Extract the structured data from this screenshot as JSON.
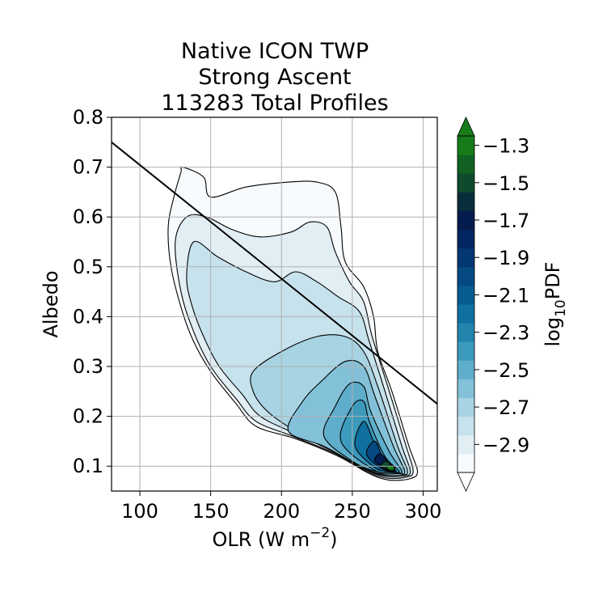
{
  "chart_data": {
    "type": "contourf",
    "title": [
      "Native ICON TWP",
      "Strong Ascent",
      "113283 Total Profiles"
    ],
    "xlabel": "OLR (W m",
    "xlabel_sup": "−2",
    "xlabel_end": ")",
    "ylabel": "Albedo",
    "xlim": [
      80,
      310
    ],
    "ylim": [
      0.05,
      0.8
    ],
    "xticks": [
      100,
      150,
      200,
      250,
      300
    ],
    "yticks": [
      0.1,
      0.2,
      0.3,
      0.4,
      0.5,
      0.6,
      0.7,
      0.8
    ],
    "grid": true,
    "reference_line": {
      "x": [
        80,
        310
      ],
      "y": [
        0.75,
        0.225
      ]
    },
    "peak": {
      "olr": 280,
      "albedo": 0.09,
      "log10pdf": -1.3
    },
    "contours": [
      {
        "level": -3.0,
        "points": [
          [
            130,
            0.7
          ],
          [
            145,
            0.68
          ],
          [
            150,
            0.64
          ],
          [
            175,
            0.66
          ],
          [
            205,
            0.67
          ],
          [
            225,
            0.67
          ],
          [
            238,
            0.65
          ],
          [
            242,
            0.58
          ],
          [
            245,
            0.51
          ],
          [
            258,
            0.46
          ],
          [
            265,
            0.4
          ],
          [
            268,
            0.33
          ],
          [
            278,
            0.25
          ],
          [
            290,
            0.14
          ],
          [
            296,
            0.09
          ],
          [
            291,
            0.075
          ],
          [
            276,
            0.072
          ],
          [
            262,
            0.085
          ],
          [
            240,
            0.12
          ],
          [
            210,
            0.155
          ],
          [
            182,
            0.18
          ],
          [
            168,
            0.225
          ],
          [
            150,
            0.29
          ],
          [
            138,
            0.35
          ],
          [
            130,
            0.41
          ],
          [
            122,
            0.5
          ],
          [
            120,
            0.58
          ],
          [
            124,
            0.64
          ],
          [
            129,
            0.69
          ]
        ]
      },
      {
        "level": -2.9,
        "points": [
          [
            125,
            0.55
          ],
          [
            133,
            0.6
          ],
          [
            147,
            0.6
          ],
          [
            165,
            0.575
          ],
          [
            185,
            0.56
          ],
          [
            207,
            0.57
          ],
          [
            220,
            0.59
          ],
          [
            232,
            0.58
          ],
          [
            238,
            0.53
          ],
          [
            248,
            0.47
          ],
          [
            258,
            0.43
          ],
          [
            264,
            0.36
          ],
          [
            275,
            0.26
          ],
          [
            288,
            0.14
          ],
          [
            293,
            0.09
          ],
          [
            288,
            0.078
          ],
          [
            274,
            0.076
          ],
          [
            260,
            0.09
          ],
          [
            238,
            0.125
          ],
          [
            208,
            0.16
          ],
          [
            182,
            0.19
          ],
          [
            168,
            0.235
          ],
          [
            150,
            0.3
          ],
          [
            138,
            0.37
          ],
          [
            129,
            0.45
          ]
        ]
      },
      {
        "level": -2.8,
        "points": [
          [
            133,
            0.48
          ],
          [
            138,
            0.55
          ],
          [
            155,
            0.52
          ],
          [
            175,
            0.49
          ],
          [
            195,
            0.47
          ],
          [
            210,
            0.49
          ],
          [
            225,
            0.47
          ],
          [
            240,
            0.44
          ],
          [
            255,
            0.41
          ],
          [
            262,
            0.35
          ],
          [
            272,
            0.26
          ],
          [
            285,
            0.14
          ],
          [
            291,
            0.09
          ],
          [
            286,
            0.08
          ],
          [
            272,
            0.08
          ],
          [
            258,
            0.095
          ],
          [
            236,
            0.13
          ],
          [
            210,
            0.165
          ],
          [
            185,
            0.2
          ],
          [
            172,
            0.245
          ],
          [
            156,
            0.3
          ],
          [
            145,
            0.36
          ],
          [
            137,
            0.42
          ]
        ]
      },
      {
        "level": -2.7,
        "points": [
          [
            180,
            0.29
          ],
          [
            200,
            0.33
          ],
          [
            225,
            0.36
          ],
          [
            245,
            0.36
          ],
          [
            258,
            0.33
          ],
          [
            268,
            0.26
          ],
          [
            282,
            0.14
          ],
          [
            289,
            0.09
          ],
          [
            284,
            0.082
          ],
          [
            270,
            0.083
          ],
          [
            256,
            0.1
          ],
          [
            234,
            0.135
          ],
          [
            210,
            0.17
          ],
          [
            190,
            0.21
          ],
          [
            180,
            0.25
          ]
        ]
      },
      {
        "level": -2.6,
        "points": [
          [
            205,
            0.17
          ],
          [
            215,
            0.23
          ],
          [
            228,
            0.27
          ],
          [
            245,
            0.31
          ],
          [
            258,
            0.3
          ],
          [
            266,
            0.24
          ],
          [
            279,
            0.14
          ],
          [
            287,
            0.09
          ],
          [
            282,
            0.085
          ],
          [
            268,
            0.086
          ],
          [
            252,
            0.105
          ],
          [
            230,
            0.14
          ]
        ]
      },
      {
        "level": -2.5,
        "points": [
          [
            230,
            0.16
          ],
          [
            238,
            0.22
          ],
          [
            248,
            0.265
          ],
          [
            258,
            0.26
          ],
          [
            263,
            0.21
          ],
          [
            276,
            0.13
          ],
          [
            285,
            0.09
          ],
          [
            280,
            0.087
          ],
          [
            266,
            0.09
          ],
          [
            250,
            0.11
          ]
        ]
      },
      {
        "level": -2.4,
        "points": [
          [
            242,
            0.15
          ],
          [
            250,
            0.22
          ],
          [
            258,
            0.23
          ],
          [
            262,
            0.19
          ],
          [
            273,
            0.12
          ],
          [
            283,
            0.09
          ],
          [
            278,
            0.088
          ],
          [
            265,
            0.093
          ]
        ]
      },
      {
        "level": -2.2,
        "points": [
          [
            252,
            0.14
          ],
          [
            258,
            0.19
          ],
          [
            265,
            0.15
          ],
          [
            272,
            0.11
          ],
          [
            281,
            0.09
          ],
          [
            277,
            0.089
          ],
          [
            266,
            0.097
          ]
        ]
      },
      {
        "level": -2.0,
        "points": [
          [
            260,
            0.125
          ],
          [
            266,
            0.15
          ],
          [
            272,
            0.115
          ],
          [
            280,
            0.092
          ],
          [
            276,
            0.09
          ],
          [
            268,
            0.1
          ]
        ]
      },
      {
        "level": -1.7,
        "points": [
          [
            266,
            0.11
          ],
          [
            270,
            0.125
          ],
          [
            276,
            0.105
          ],
          [
            280,
            0.092
          ],
          [
            276,
            0.09
          ]
        ]
      },
      {
        "level": -1.5,
        "points": [
          [
            270,
            0.1
          ],
          [
            274,
            0.11
          ],
          [
            279,
            0.098
          ],
          [
            280,
            0.092
          ],
          [
            276,
            0.092
          ]
        ]
      },
      {
        "level": -1.3,
        "points": [
          [
            274,
            0.096
          ],
          [
            277,
            0.102
          ],
          [
            280,
            0.096
          ],
          [
            278,
            0.091
          ]
        ]
      }
    ],
    "colorbar": {
      "label": "log",
      "label_sub": "10",
      "label_end": "PDF",
      "ticks": [
        -1.3,
        -1.5,
        -1.7,
        -1.9,
        -2.1,
        -2.3,
        -2.5,
        -2.7,
        -2.9
      ],
      "tick_labels": [
        "−1.3",
        "−1.5",
        "−1.7",
        "−1.9",
        "−2.1",
        "−2.3",
        "−2.5",
        "−2.7",
        "−2.9"
      ],
      "levels": [
        -3.0,
        -2.9,
        -2.8,
        -2.7,
        -2.6,
        -2.5,
        -2.4,
        -2.3,
        -2.2,
        -2.1,
        -2.0,
        -1.9,
        -1.8,
        -1.7,
        -1.6,
        -1.5,
        -1.4,
        -1.3
      ],
      "colors": [
        "#f7fbfd",
        "#e1eef4",
        "#c6e2ec",
        "#a7d3e3",
        "#83c1d8",
        "#5eaecb",
        "#3c9abd",
        "#2384ad",
        "#10709f",
        "#075b90",
        "#054a82",
        "#033772",
        "#022662",
        "#051c4e",
        "#082e3b",
        "#0f4a2c",
        "#116222",
        "#167c1a"
      ],
      "extend": "both"
    }
  }
}
